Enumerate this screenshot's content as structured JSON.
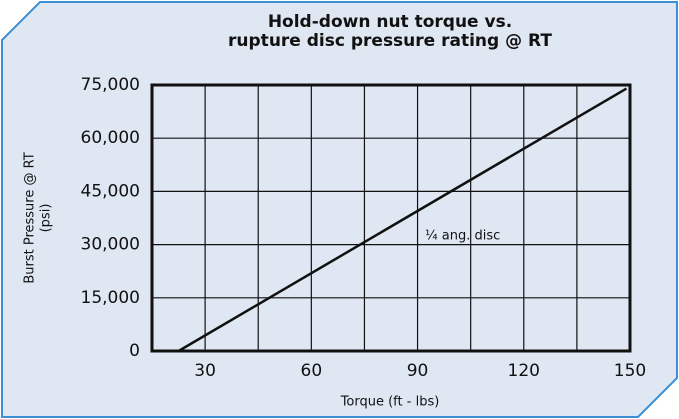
{
  "chart_data": {
    "type": "line",
    "title": [
      "Hold-down nut torque vs.",
      "rupture disc pressure rating @ RT"
    ],
    "x_label": "Torque (ft - lbs)",
    "y_label": [
      "Burst Pressure @ RT",
      "(psi)"
    ],
    "annotation": "¼ ang. disc",
    "series": [
      {
        "color": "#111111",
        "x": [
          22.5,
          149
        ],
        "values": [
          0,
          74000
        ]
      }
    ],
    "xlim": [
      15,
      150
    ],
    "xticks": [
      30,
      60,
      90,
      120,
      150
    ],
    "xminor_ticks": [
      15,
      45,
      75,
      105,
      135
    ],
    "ylim": [
      0,
      75000
    ],
    "yticks": [
      0,
      {
        "value": 15000,
        "label": "15,000"
      },
      {
        "value": 30000,
        "label": "30,000"
      },
      {
        "value": 45000,
        "label": "45,000"
      },
      {
        "value": 60000,
        "label": "60,000"
      },
      {
        "value": 75000,
        "label": "75,000"
      }
    ],
    "grid": true
  }
}
